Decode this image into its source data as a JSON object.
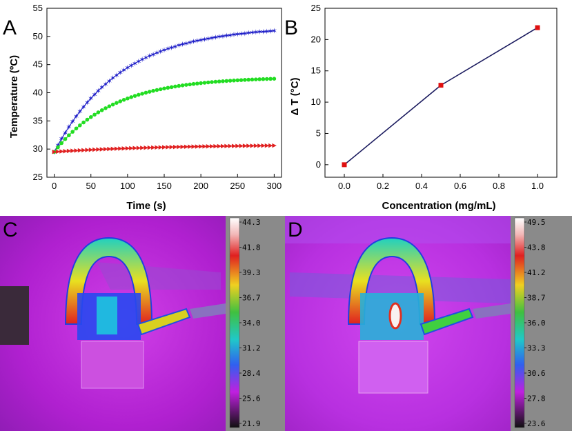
{
  "panels": {
    "A": "A",
    "B": "B",
    "C": "C",
    "D": "D"
  },
  "chart_data": [
    {
      "panel": "A",
      "type": "line",
      "title": "",
      "xlabel": "Time (s)",
      "ylabel": "Temperature (ºC)",
      "xlim": [
        -10,
        310
      ],
      "ylim": [
        25,
        55
      ],
      "xticks": [
        "0",
        "50",
        "100",
        "150",
        "200",
        "250",
        "300"
      ],
      "yticks": [
        "25",
        "30",
        "35",
        "40",
        "45",
        "50",
        "55"
      ],
      "grid": false,
      "series": [
        {
          "name": "blue",
          "color": "#1f1fc8",
          "marker": "star",
          "t0": 29.5,
          "tmax": 51.8,
          "tau": 90
        },
        {
          "name": "green",
          "color": "#22dd22",
          "marker": "circle",
          "t0": 29.5,
          "tmax": 42.8,
          "tau": 80
        },
        {
          "name": "red",
          "color": "#e02020",
          "marker": "triangle-right",
          "t0": 29.5,
          "tmax": 30.8,
          "tau": 150
        }
      ]
    },
    {
      "panel": "B",
      "type": "line",
      "title": "",
      "xlabel": "Concentration (mg/mL)",
      "ylabel": "Δ T (°C)",
      "x": [
        0.0,
        0.5,
        1.0
      ],
      "y": [
        0,
        12.7,
        21.9
      ],
      "xlim": [
        -0.1,
        1.1
      ],
      "ylim": [
        -2,
        25
      ],
      "xticks": [
        "0.0",
        "0.2",
        "0.4",
        "0.6",
        "0.8",
        "1.0"
      ],
      "yticks": [
        "0",
        "5",
        "10",
        "15",
        "20",
        "25"
      ],
      "line_color": "#1a1a5e",
      "marker_color": "#e01010"
    }
  ],
  "thermal": {
    "C": {
      "scale": [
        "44.3",
        "41.8",
        "39.3",
        "36.7",
        "34.0",
        "31.2",
        "28.4",
        "25.6",
        "21.9"
      ]
    },
    "D": {
      "scale": [
        "49.5",
        "43.8",
        "41.2",
        "38.7",
        "36.0",
        "33.3",
        "30.6",
        "27.8",
        "23.6"
      ]
    }
  }
}
